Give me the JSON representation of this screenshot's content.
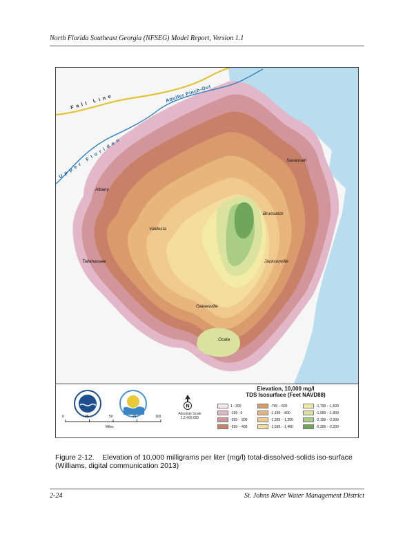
{
  "header": {
    "title": "North Florida Southeast Georgia (NFSEG) Model Report, Version 1.1"
  },
  "map": {
    "line_labels": {
      "fall_line": "Fall Line",
      "aquifer_pinch_out": "Aquifer Pinch-Out",
      "upper_floridan": "Upper Floridan"
    },
    "cities": {
      "savannah": "Savannah",
      "albany": "Albany",
      "brunswick": "Brunswick",
      "valdosta": "Valdosta",
      "tallahassee": "Tallahassee",
      "jacksonville": "Jacksonville",
      "gainesville": "Gainesville",
      "ocala": "Ocala"
    },
    "colors": {
      "ocean": "#b9dcef",
      "land": "#f6f6f6",
      "fall_line": "#e3c23a",
      "aquifer_line": "#2f7fbf"
    }
  },
  "legend": {
    "title_line1": "Elevation, 10,000 mg/l",
    "title_line2": "TDS Isosurface (Feet NAVD88)",
    "classes": [
      {
        "label": "1 - 200",
        "color": "#f6e6f0"
      },
      {
        "label": "-199 - 0",
        "color": "#e2b7c8"
      },
      {
        "label": "-399 - -200",
        "color": "#d2959a"
      },
      {
        "label": "-599 - -400",
        "color": "#c98068"
      },
      {
        "label": "-799 - -600",
        "color": "#d99a6c"
      },
      {
        "label": "-1,199 - -800",
        "color": "#e8b57c"
      },
      {
        "label": "-1,399 - -1,200",
        "color": "#efc98e"
      },
      {
        "label": "-1,599 - -1,400",
        "color": "#f4dc9e"
      },
      {
        "label": "-1,799 - -1,600",
        "color": "#f3eaa6"
      },
      {
        "label": "-1,999 - -1,800",
        "color": "#d9e29e"
      },
      {
        "label": "-2,199 - -2,000",
        "color": "#a9cd84"
      },
      {
        "label": "-2,306 - -2,200",
        "color": "#6fa65c"
      }
    ],
    "scale_bar": {
      "ticks": [
        "0",
        "25",
        "50",
        "75",
        "100"
      ],
      "units": "Miles"
    },
    "scale_text": {
      "line1": "Absolute Scale",
      "line2": "1:2,400,000"
    },
    "north_label": "N"
  },
  "caption": {
    "number": "Figure 2-12.",
    "text": "Elevation of 10,000 milligrams per liter (mg/l) total-dissolved-solids iso-surface (Williams, digital communication 2013)"
  },
  "footer": {
    "page_number": "2-24",
    "organization": "St. Johns River Water Management District"
  }
}
